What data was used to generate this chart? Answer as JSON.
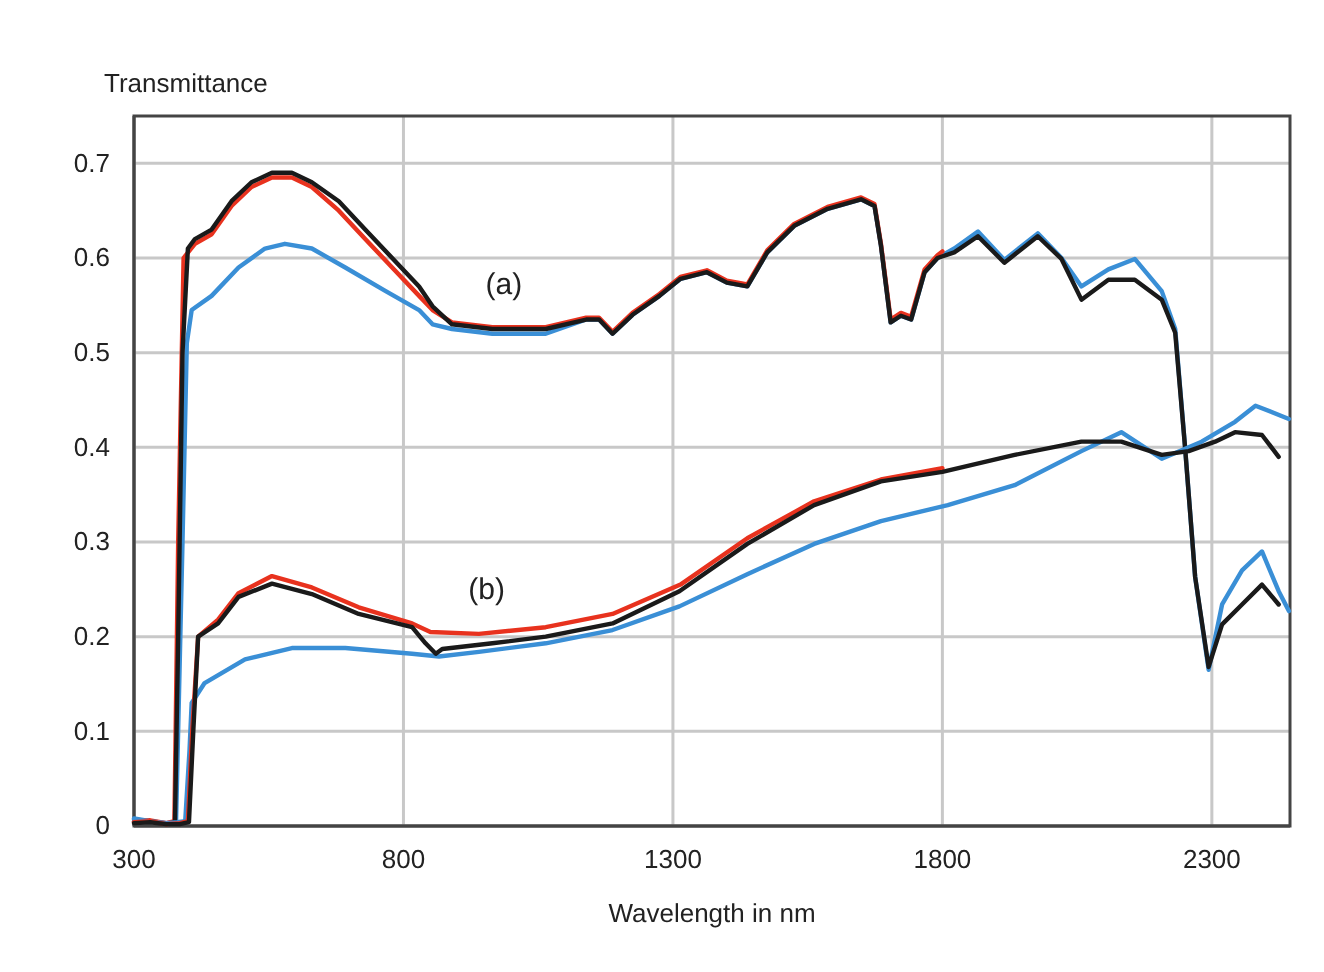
{
  "chart_data": {
    "type": "line",
    "xlabel": "Wavelength in nm",
    "ylabel": "Transmittance",
    "xlim": [
      300,
      2445
    ],
    "xticks": [
      300,
      800,
      1300,
      1800,
      2300
    ],
    "ylim": [
      0,
      0.75
    ],
    "yticks": [
      0,
      0.1,
      0.2,
      0.3,
      0.4,
      0.5,
      0.6,
      0.7
    ],
    "grid": true,
    "line_style": "solid",
    "annotations": [
      "(a)",
      "(b)"
    ],
    "series": [
      {
        "color": "#3a8fd6",
        "x": [
          300,
          330,
          360,
          378,
          390,
          398,
          407,
          444,
          494,
          543,
          580,
          630,
          692,
          767,
          829,
          854,
          890,
          965,
          1064,
          1139,
          1163,
          1188,
          1225,
          1275,
          1314,
          1363,
          1400,
          1438,
          1475,
          1525,
          1587,
          1649,
          1674,
          1686,
          1704,
          1723,
          1742,
          1767,
          1791,
          1822,
          1866,
          1915,
          1977,
          2021,
          2058,
          2108,
          2157,
          2207,
          2232,
          2250,
          2269,
          2294,
          2319,
          2356,
          2393,
          2424,
          2443
        ],
        "values": [
          0.008,
          0.005,
          0.003,
          0.004,
          0.3,
          0.51,
          0.545,
          0.56,
          0.59,
          0.61,
          0.615,
          0.61,
          0.59,
          0.565,
          0.545,
          0.53,
          0.525,
          0.52,
          0.52,
          0.535,
          0.535,
          0.52,
          0.54,
          0.56,
          0.578,
          0.585,
          0.574,
          0.57,
          0.606,
          0.634,
          0.652,
          0.662,
          0.655,
          0.613,
          0.532,
          0.539,
          0.535,
          0.585,
          0.6,
          0.61,
          0.628,
          0.598,
          0.626,
          0.6,
          0.57,
          0.588,
          0.599,
          0.565,
          0.525,
          0.402,
          0.263,
          0.165,
          0.234,
          0.27,
          0.29,
          0.248,
          0.227
        ]
      },
      {
        "color": "#e8321e",
        "x": [
          300,
          330,
          360,
          375,
          382,
          392,
          413,
          444,
          481,
          518,
          556,
          593,
          630,
          680,
          729,
          779,
          829,
          854,
          890,
          965,
          1064,
          1139,
          1163,
          1188,
          1225,
          1275,
          1314,
          1363,
          1400,
          1438,
          1475,
          1525,
          1587,
          1649,
          1674,
          1686,
          1704,
          1723,
          1742,
          1767,
          1791,
          1800
        ],
        "values": [
          0.005,
          0.006,
          0.003,
          0.005,
          0.3,
          0.6,
          0.615,
          0.625,
          0.655,
          0.675,
          0.685,
          0.685,
          0.675,
          0.65,
          0.62,
          0.59,
          0.56,
          0.545,
          0.532,
          0.527,
          0.527,
          0.537,
          0.537,
          0.522,
          0.542,
          0.562,
          0.58,
          0.587,
          0.576,
          0.572,
          0.608,
          0.636,
          0.654,
          0.664,
          0.657,
          0.615,
          0.535,
          0.542,
          0.538,
          0.588,
          0.603,
          0.607
        ]
      },
      {
        "color": "#1a1a1a",
        "x": [
          300,
          330,
          360,
          376,
          382,
          390,
          400,
          413,
          444,
          481,
          518,
          556,
          593,
          630,
          680,
          729,
          779,
          829,
          854,
          890,
          965,
          1064,
          1139,
          1163,
          1188,
          1225,
          1275,
          1314,
          1363,
          1400,
          1438,
          1475,
          1525,
          1587,
          1649,
          1674,
          1686,
          1704,
          1723,
          1742,
          1767,
          1791,
          1822,
          1866,
          1915,
          1977,
          2021,
          2058,
          2108,
          2157,
          2207,
          2232,
          2250,
          2269,
          2294,
          2319,
          2356,
          2393,
          2424
        ],
        "values": [
          0.004,
          0.005,
          0.002,
          0.004,
          0.2,
          0.5,
          0.61,
          0.62,
          0.63,
          0.66,
          0.68,
          0.69,
          0.69,
          0.68,
          0.66,
          0.63,
          0.6,
          0.57,
          0.549,
          0.53,
          0.525,
          0.525,
          0.535,
          0.535,
          0.52,
          0.54,
          0.56,
          0.578,
          0.585,
          0.574,
          0.57,
          0.606,
          0.634,
          0.652,
          0.662,
          0.655,
          0.613,
          0.532,
          0.539,
          0.535,
          0.585,
          0.6,
          0.606,
          0.623,
          0.595,
          0.623,
          0.599,
          0.556,
          0.577,
          0.577,
          0.556,
          0.521,
          0.402,
          0.263,
          0.168,
          0.213,
          0.234,
          0.255,
          0.234
        ]
      },
      {
        "color": "#3a8fd6",
        "x": [
          300,
          330,
          360,
          380,
          395,
          403,
          407,
          431,
          506,
          593,
          692,
          816,
          866,
          940,
          1064,
          1188,
          1312,
          1438,
          1562,
          1686,
          1810,
          1934,
          2058,
          2132,
          2207,
          2281,
          2343,
          2381,
          2443
        ],
        "values": [
          0.007,
          0.005,
          0.003,
          0.004,
          0.005,
          0.08,
          0.13,
          0.151,
          0.176,
          0.188,
          0.188,
          0.182,
          0.179,
          0.184,
          0.193,
          0.207,
          0.232,
          0.266,
          0.298,
          0.322,
          0.339,
          0.36,
          0.396,
          0.416,
          0.388,
          0.406,
          0.427,
          0.444,
          0.43
        ]
      },
      {
        "color": "#e8321e",
        "x": [
          300,
          330,
          360,
          385,
          400,
          408,
          419,
          456,
          494,
          556,
          630,
          717,
          816,
          850,
          940,
          1064,
          1188,
          1314,
          1438,
          1562,
          1686,
          1800
        ],
        "values": [
          0.004,
          0.005,
          0.002,
          0.003,
          0.005,
          0.1,
          0.2,
          0.218,
          0.246,
          0.264,
          0.252,
          0.231,
          0.214,
          0.205,
          0.203,
          0.21,
          0.224,
          0.255,
          0.304,
          0.343,
          0.366,
          0.378
        ]
      },
      {
        "color": "#1a1a1a",
        "x": [
          300,
          330,
          360,
          385,
          402,
          410,
          419,
          456,
          494,
          556,
          630,
          717,
          816,
          841,
          860,
          872,
          965,
          1064,
          1188,
          1312,
          1438,
          1562,
          1686,
          1800,
          1934,
          2058,
          2132,
          2207,
          2257,
          2306,
          2343,
          2393,
          2424
        ],
        "values": [
          0.003,
          0.004,
          0.002,
          0.002,
          0.004,
          0.1,
          0.2,
          0.214,
          0.242,
          0.256,
          0.245,
          0.224,
          0.21,
          0.193,
          0.182,
          0.187,
          0.193,
          0.2,
          0.214,
          0.248,
          0.298,
          0.339,
          0.364,
          0.374,
          0.392,
          0.406,
          0.406,
          0.392,
          0.396,
          0.406,
          0.416,
          0.413,
          0.39
        ]
      }
    ]
  }
}
